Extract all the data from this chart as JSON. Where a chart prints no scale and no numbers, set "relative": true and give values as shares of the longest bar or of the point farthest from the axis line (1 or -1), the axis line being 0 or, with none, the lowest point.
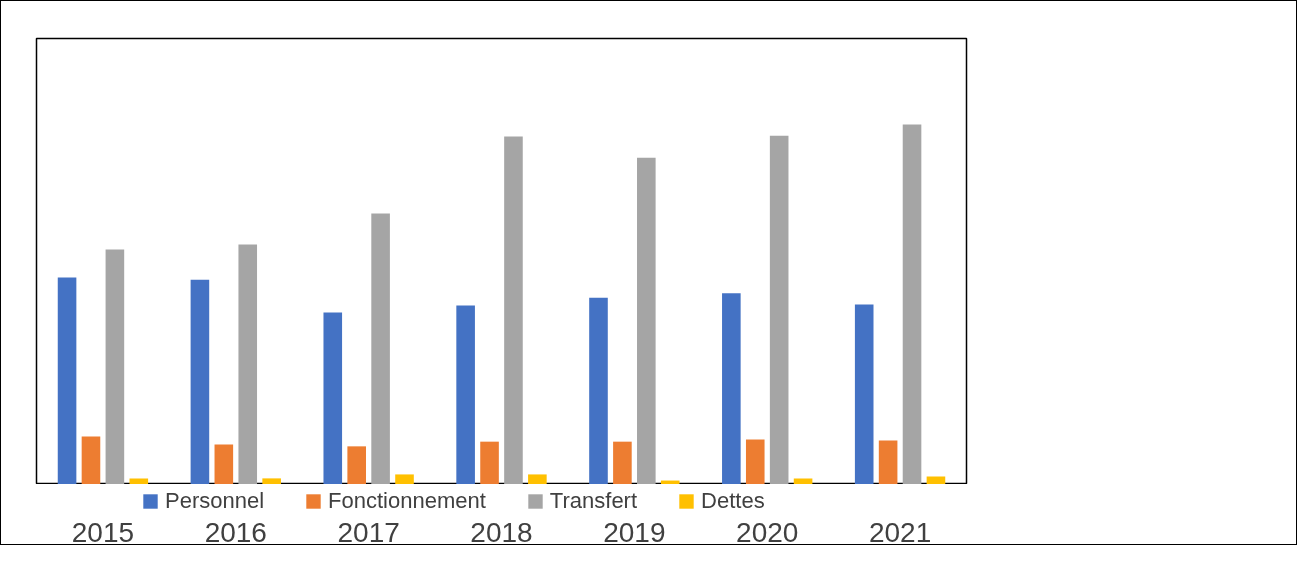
{
  "chart_data": {
    "type": "bar",
    "relative": true,
    "legend": "bottom",
    "categories": [
      "2015",
      "2016",
      "2017",
      "2018",
      "2019",
      "2020",
      "2021"
    ],
    "series": [
      {
        "name": "Personnel",
        "color": "#4472c4",
        "values": [
          0.575,
          0.569,
          0.478,
          0.497,
          0.519,
          0.531,
          0.5
        ]
      },
      {
        "name": "Fonctionnement",
        "color": "#ed7d31",
        "values": [
          0.133,
          0.111,
          0.106,
          0.119,
          0.119,
          0.125,
          0.122
        ]
      },
      {
        "name": "Transfert",
        "color": "#a5a5a5",
        "values": [
          0.653,
          0.667,
          0.753,
          0.967,
          0.908,
          0.969,
          1.0
        ]
      },
      {
        "name": "Dettes",
        "color": "#ffc000",
        "values": [
          0.017,
          0.017,
          0.028,
          0.028,
          0.011,
          0.017,
          0.022
        ]
      }
    ]
  }
}
